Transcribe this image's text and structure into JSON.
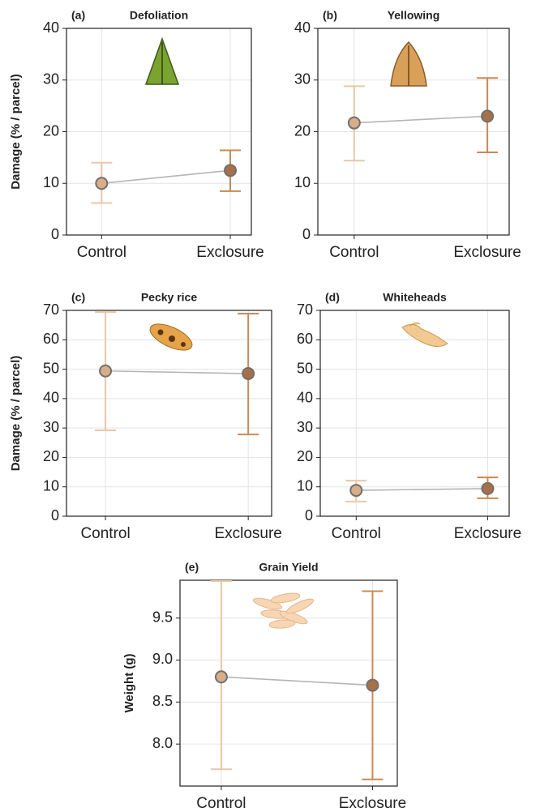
{
  "chart_data": [
    {
      "type": "errorbar",
      "panel_label": "(a)",
      "title": "Defoliation",
      "ylabel": "Damage (% / parcel)",
      "categories": [
        "Control",
        "Exclosure"
      ],
      "values": [
        10,
        12.5
      ],
      "lower": [
        6.2,
        8.5
      ],
      "upper": [
        14,
        16.4
      ],
      "colors": [
        "#d8ad87",
        "#a87046"
      ],
      "bar_colors": [
        "#e9c7a8",
        "#c98a55"
      ],
      "ylim": [
        0,
        40
      ],
      "yticks": [
        0,
        10,
        20,
        30,
        40
      ],
      "grid": true
    },
    {
      "type": "errorbar",
      "panel_label": "(b)",
      "title": "Yellowing",
      "categories": [
        "Control",
        "Exclosure"
      ],
      "values": [
        21.7,
        23
      ],
      "lower": [
        14.4,
        16
      ],
      "upper": [
        28.8,
        30.4
      ],
      "colors": [
        "#d8ad87",
        "#a87046"
      ],
      "bar_colors": [
        "#e9c7a8",
        "#c98a55"
      ],
      "ylim": [
        0,
        40
      ],
      "yticks": [
        0,
        10,
        20,
        30,
        40
      ],
      "grid": true
    },
    {
      "type": "errorbar",
      "panel_label": "(c)",
      "title": "Pecky rice",
      "ylabel": "Damage (% / parcel)",
      "categories": [
        "Control",
        "Exclosure"
      ],
      "values": [
        49.4,
        48.5
      ],
      "lower": [
        29.2,
        27.8
      ],
      "upper": [
        69.4,
        68.9
      ],
      "colors": [
        "#d8ad87",
        "#a87046"
      ],
      "bar_colors": [
        "#e9c7a8",
        "#c98a55"
      ],
      "ylim": [
        0,
        70
      ],
      "yticks": [
        0,
        10,
        20,
        30,
        40,
        50,
        60,
        70
      ],
      "grid": true
    },
    {
      "type": "errorbar",
      "panel_label": "(d)",
      "title": "Whiteheads",
      "categories": [
        "Control",
        "Exclosure"
      ],
      "values": [
        8.8,
        9.4
      ],
      "lower": [
        5,
        6.1
      ],
      "upper": [
        12.1,
        13.2
      ],
      "colors": [
        "#d8ad87",
        "#a87046"
      ],
      "bar_colors": [
        "#e9c7a8",
        "#c98a55"
      ],
      "ylim": [
        0,
        70
      ],
      "yticks": [
        0,
        10,
        20,
        30,
        40,
        50,
        60,
        70
      ],
      "grid": true
    },
    {
      "type": "errorbar",
      "panel_label": "(e)",
      "title": "Grain Yield",
      "ylabel": "Weight (g)",
      "categories": [
        "Control",
        "Exclosure"
      ],
      "values": [
        8.8,
        8.7
      ],
      "lower": [
        7.7,
        7.58
      ],
      "upper": [
        9.94,
        9.82
      ],
      "colors": [
        "#d8ad87",
        "#a87046"
      ],
      "bar_colors": [
        "#e9c7a8",
        "#c98a55"
      ],
      "ylim": [
        7.5,
        9.95
      ],
      "yticks": [
        {
          "value": 8,
          "label": "8.0"
        },
        {
          "value": 8.5,
          "label": "8.5"
        },
        {
          "value": 9,
          "label": "9.0"
        },
        {
          "value": 9.5,
          "label": "9.5"
        }
      ],
      "grid": true
    }
  ]
}
